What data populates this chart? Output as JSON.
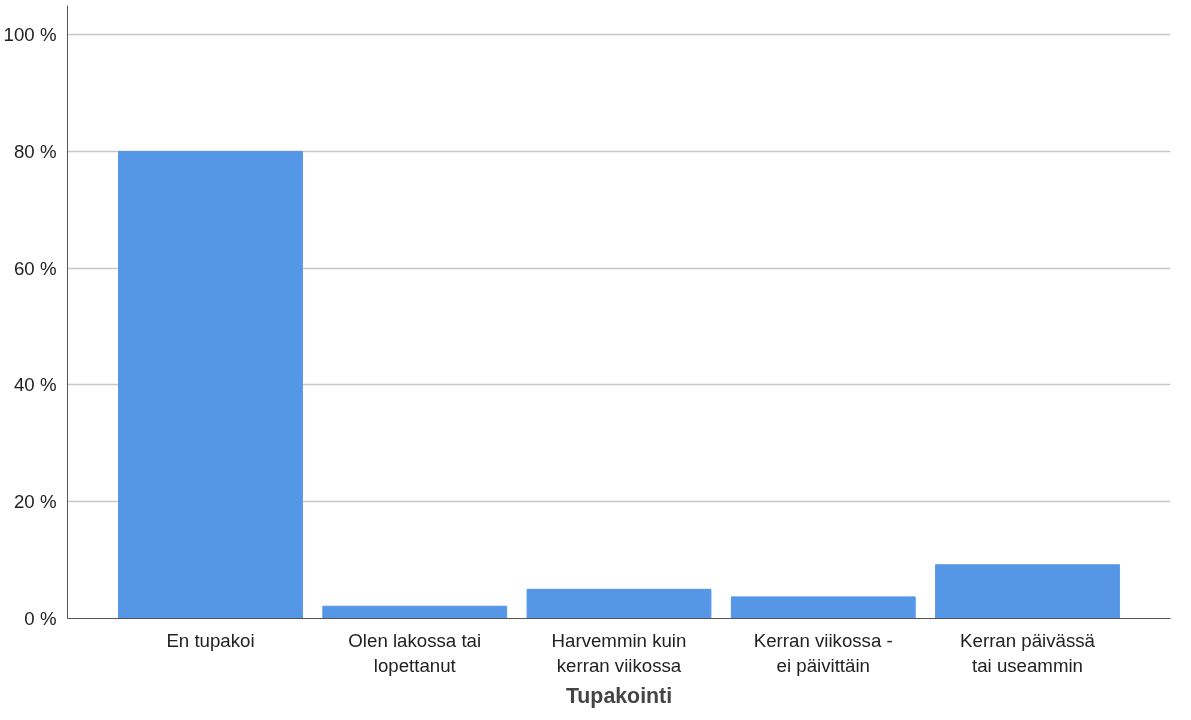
{
  "chart_data": {
    "type": "bar",
    "xlabel": "Tupakointi",
    "categories": [
      "En tupakoi",
      "Olen lakossa tai\nlopettanut",
      "Harvemmin kuin\nkerran viikossa",
      "Kerran viikossa -\nei päivittäin",
      "Kerran päivässä\ntai useammin"
    ],
    "values": [
      80.0,
      2.1,
      5.0,
      3.7,
      9.2
    ],
    "color": "#5596e6",
    "ylim": [
      0,
      105
    ],
    "yticks": [
      {
        "value": 0,
        "label": "0 %"
      },
      {
        "value": 20,
        "label": "20 %"
      },
      {
        "value": 40,
        "label": "40 %"
      },
      {
        "value": 60,
        "label": "60 %"
      },
      {
        "value": 80,
        "label": "80 %"
      },
      {
        "value": 100,
        "label": "100 %"
      }
    ],
    "grid": "y"
  }
}
